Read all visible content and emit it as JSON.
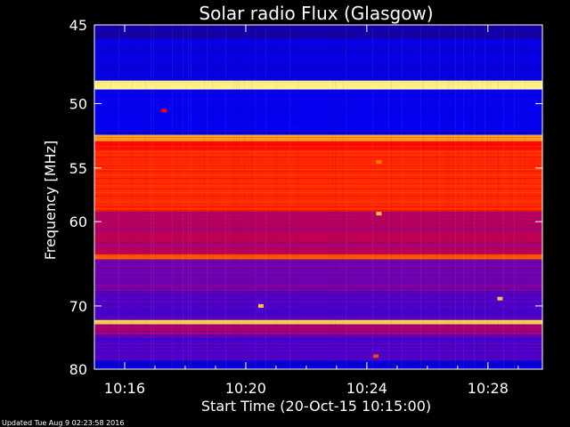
{
  "chart_data": {
    "type": "heatmap",
    "title": "Solar radio Flux (Glasgow)",
    "xlabel": "Start Time (20-Oct-15 10:15:00)",
    "ylabel": "Frequency [MHz]",
    "x_ticks": [
      {
        "minutes": 1,
        "label": "10:16"
      },
      {
        "minutes": 5,
        "label": "10:20"
      },
      {
        "minutes": 9,
        "label": "10:24"
      },
      {
        "minutes": 13,
        "label": "10:28"
      }
    ],
    "y_ticks": [
      {
        "value": 45,
        "label": "45"
      },
      {
        "value": 50,
        "label": "50"
      },
      {
        "value": 55,
        "label": "55"
      },
      {
        "value": 60,
        "label": "60"
      },
      {
        "value": 70,
        "label": "70"
      },
      {
        "value": 80,
        "label": "80"
      }
    ],
    "x_range_minutes": [
      0,
      14.8
    ],
    "y_range_mhz": [
      45,
      80
    ],
    "y_scale": "reciprocal",
    "colormap": [
      "#1a0080",
      "#0000ff",
      "#8000a0",
      "#ff0000",
      "#ff8000",
      "#ffffa0"
    ],
    "bands": [
      {
        "f1": 45.0,
        "f2": 45.8,
        "level": 0.05
      },
      {
        "f1": 45.8,
        "f2": 48.4,
        "level": 0.15
      },
      {
        "f1": 48.4,
        "f2": 49.0,
        "level": 0.98
      },
      {
        "f1": 49.0,
        "f2": 52.3,
        "level": 0.18
      },
      {
        "f1": 52.3,
        "f2": 52.8,
        "level": 0.85
      },
      {
        "f1": 52.8,
        "f2": 53.5,
        "level": 0.62
      },
      {
        "f1": 53.5,
        "f2": 59.0,
        "level": 0.66
      },
      {
        "f1": 59.0,
        "f2": 63.5,
        "level": 0.48
      },
      {
        "f1": 63.5,
        "f2": 64.1,
        "level": 0.72
      },
      {
        "f1": 64.1,
        "f2": 68.0,
        "level": 0.38
      },
      {
        "f1": 68.0,
        "f2": 72.0,
        "level": 0.33
      },
      {
        "f1": 72.0,
        "f2": 72.6,
        "level": 0.92
      },
      {
        "f1": 72.6,
        "f2": 74.2,
        "level": 0.45
      },
      {
        "f1": 74.2,
        "f2": 78.5,
        "level": 0.32
      },
      {
        "f1": 78.5,
        "f2": 80.0,
        "level": 0.14
      }
    ],
    "features": [
      {
        "t": 9.4,
        "f": 54.5,
        "level": 0.8
      },
      {
        "t": 9.4,
        "f": 59.2,
        "level": 0.9
      },
      {
        "t": 5.5,
        "f": 70.0,
        "level": 0.9
      },
      {
        "t": 13.4,
        "f": 69.0,
        "level": 0.9
      },
      {
        "t": 2.3,
        "f": 50.5,
        "level": 0.6
      },
      {
        "t": 9.3,
        "f": 77.7,
        "level": 0.7
      }
    ]
  },
  "footer": {
    "updated": "Updated Tue Aug  9 02:23:58 2016"
  }
}
